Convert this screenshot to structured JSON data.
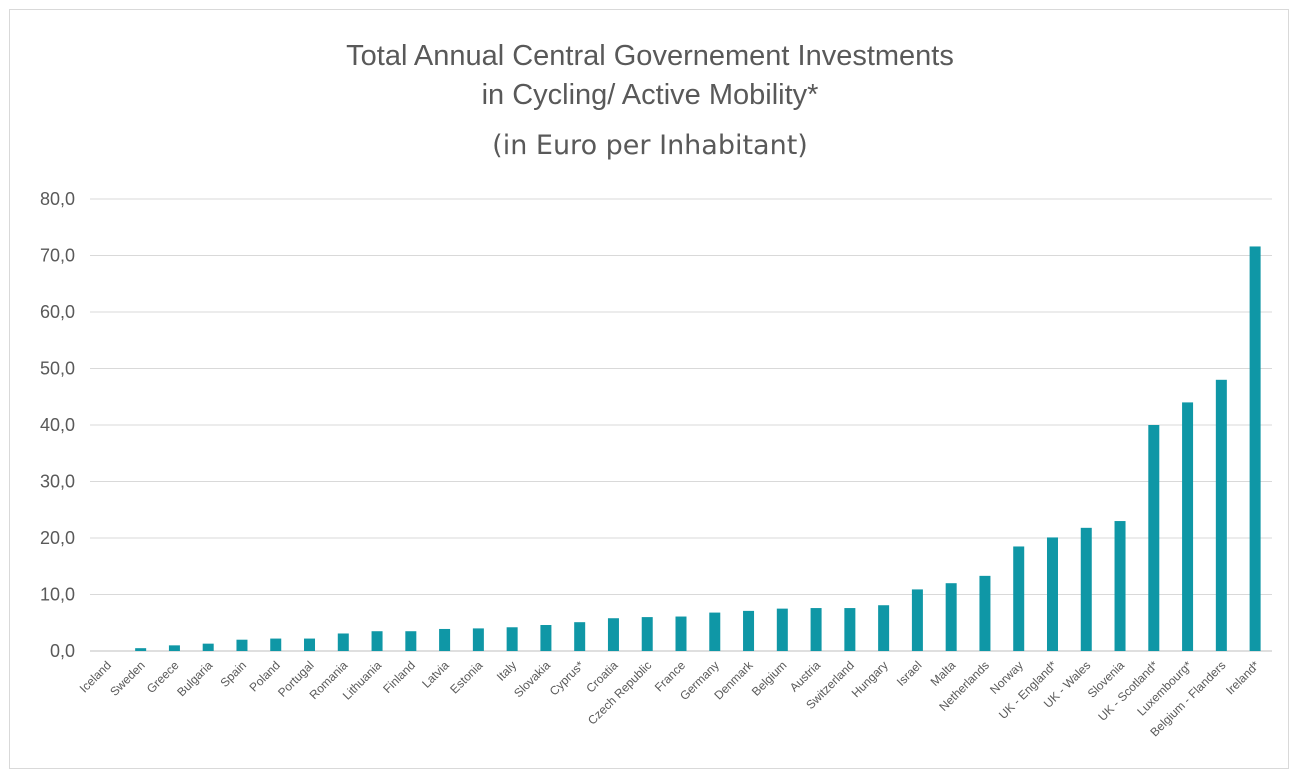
{
  "chart_data": {
    "type": "bar",
    "title": "Total Annual Central Governement Investments",
    "title_line2": "in Cycling/ Active Mobility*",
    "subtitle": "(in Euro per Inhabitant)",
    "xlabel": "",
    "ylabel": "",
    "ylim": [
      0,
      80
    ],
    "yticks": [
      "0,0",
      "10,0",
      "20,0",
      "30,0",
      "40,0",
      "50,0",
      "60,0",
      "70,0",
      "80,0"
    ],
    "grid": true,
    "bar_color": "#0f97a6",
    "categories": [
      "Iceland",
      "Sweden",
      "Greece",
      "Bulgaria",
      "Spain",
      "Poland",
      "Portugal",
      "Romania",
      "Lithuania",
      "Finland",
      "Latvia",
      "Estonia",
      "Italy",
      "Slovakia",
      "Cyprus*",
      "Croatia",
      "Czech Republic",
      "France",
      "Germany",
      "Denmark",
      "Belgium",
      "Austria",
      "Switzerland",
      "Hungary",
      "Israel",
      "Malta",
      "Netherlands",
      "Norway",
      "UK - England*",
      "UK - Wales",
      "Slovenia",
      "UK - Scotland*",
      "Luxembourg*",
      "Belgium - Flanders",
      "Ireland*"
    ],
    "values": [
      0.0,
      0.5,
      1.0,
      1.3,
      2.0,
      2.2,
      2.2,
      3.1,
      3.5,
      3.5,
      3.9,
      4.0,
      4.2,
      4.6,
      5.1,
      5.8,
      6.0,
      6.1,
      6.8,
      7.1,
      7.5,
      7.6,
      7.6,
      8.1,
      10.9,
      12.0,
      13.3,
      18.5,
      20.1,
      21.8,
      23.0,
      40.0,
      44.0,
      48.0,
      71.6
    ]
  }
}
